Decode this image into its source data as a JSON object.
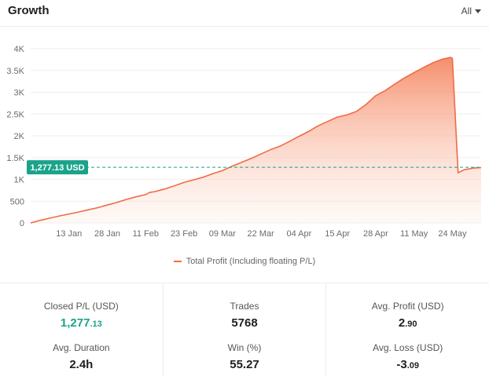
{
  "header": {
    "title": "Growth",
    "range_label": "All"
  },
  "chart_data": {
    "type": "area",
    "series": [
      {
        "name": "Total Profit (Including floating P/L)",
        "color": "#f06b45",
        "points": [
          [
            0,
            0
          ],
          [
            0.025,
            60
          ],
          [
            0.05,
            110
          ],
          [
            0.075,
            160
          ],
          [
            0.1,
            205
          ],
          [
            0.125,
            250
          ],
          [
            0.15,
            300
          ],
          [
            0.175,
            350
          ],
          [
            0.2,
            410
          ],
          [
            0.225,
            470
          ],
          [
            0.25,
            540
          ],
          [
            0.275,
            600
          ],
          [
            0.3,
            650
          ],
          [
            0.31,
            700
          ],
          [
            0.325,
            720
          ],
          [
            0.35,
            780
          ],
          [
            0.375,
            850
          ],
          [
            0.4,
            930
          ],
          [
            0.425,
            990
          ],
          [
            0.45,
            1050
          ],
          [
            0.475,
            1130
          ],
          [
            0.5,
            1200
          ],
          [
            0.525,
            1300
          ],
          [
            0.55,
            1390
          ],
          [
            0.575,
            1480
          ],
          [
            0.6,
            1580
          ],
          [
            0.625,
            1680
          ],
          [
            0.65,
            1760
          ],
          [
            0.675,
            1870
          ],
          [
            0.7,
            1990
          ],
          [
            0.725,
            2100
          ],
          [
            0.75,
            2230
          ],
          [
            0.775,
            2330
          ],
          [
            0.8,
            2430
          ],
          [
            0.825,
            2480
          ],
          [
            0.85,
            2560
          ],
          [
            0.875,
            2720
          ],
          [
            0.9,
            2920
          ],
          [
            0.925,
            3040
          ],
          [
            0.95,
            3190
          ],
          [
            0.975,
            3330
          ],
          [
            1.0,
            3450
          ],
          [
            1.025,
            3570
          ],
          [
            1.05,
            3680
          ],
          [
            1.075,
            3760
          ],
          [
            1.095,
            3800
          ],
          [
            1.1,
            3780
          ],
          [
            1.115,
            1150
          ],
          [
            1.13,
            1220
          ],
          [
            1.155,
            1260
          ],
          [
            1.175,
            1270
          ]
        ]
      }
    ],
    "y_ticks": [
      {
        "value": 0,
        "label": "0"
      },
      {
        "value": 500,
        "label": "500"
      },
      {
        "value": 1000,
        "label": "1K"
      },
      {
        "value": 1500,
        "label": "1.5K"
      },
      {
        "value": 2000,
        "label": "2K"
      },
      {
        "value": 2500,
        "label": "2.5K"
      },
      {
        "value": 3000,
        "label": "3K"
      },
      {
        "value": 3500,
        "label": "3.5K"
      },
      {
        "value": 4000,
        "label": "4K"
      }
    ],
    "x_ticks": [
      {
        "value": 0.1,
        "label": "13 Jan"
      },
      {
        "value": 0.2,
        "label": "28 Jan"
      },
      {
        "value": 0.3,
        "label": "11 Feb"
      },
      {
        "value": 0.4,
        "label": "23 Feb"
      },
      {
        "value": 0.5,
        "label": "09 Mar"
      },
      {
        "value": 0.6,
        "label": "22 Mar"
      },
      {
        "value": 0.7,
        "label": "04 Apr"
      },
      {
        "value": 0.8,
        "label": "15 Apr"
      },
      {
        "value": 0.9,
        "label": "28 Apr"
      },
      {
        "value": 1.0,
        "label": "11 May"
      },
      {
        "value": 1.1,
        "label": "24 May"
      }
    ],
    "ylim": [
      0,
      4000
    ],
    "xlim": [
      0,
      1.175
    ],
    "current_value": 1277.13,
    "current_label": "1,277.13 USD",
    "marker_color": "#1aa38a",
    "grid": true
  },
  "legend": {
    "label": "Total Profit (Including floating P/L)"
  },
  "stats": {
    "closed_pl": {
      "label": "Closed P/L (USD)",
      "int": "1,277",
      "dec": ".13"
    },
    "avg_duration": {
      "label": "Avg. Duration",
      "value": "2.4h"
    },
    "trades": {
      "label": "Trades",
      "value": "5768"
    },
    "win": {
      "label": "Win (%)",
      "value": "55.27"
    },
    "avg_profit": {
      "label": "Avg. Profit (USD)",
      "int": "2",
      "dec": ".90"
    },
    "avg_loss": {
      "label": "Avg. Loss (USD)",
      "int": "-3",
      "dec": ".09"
    }
  }
}
